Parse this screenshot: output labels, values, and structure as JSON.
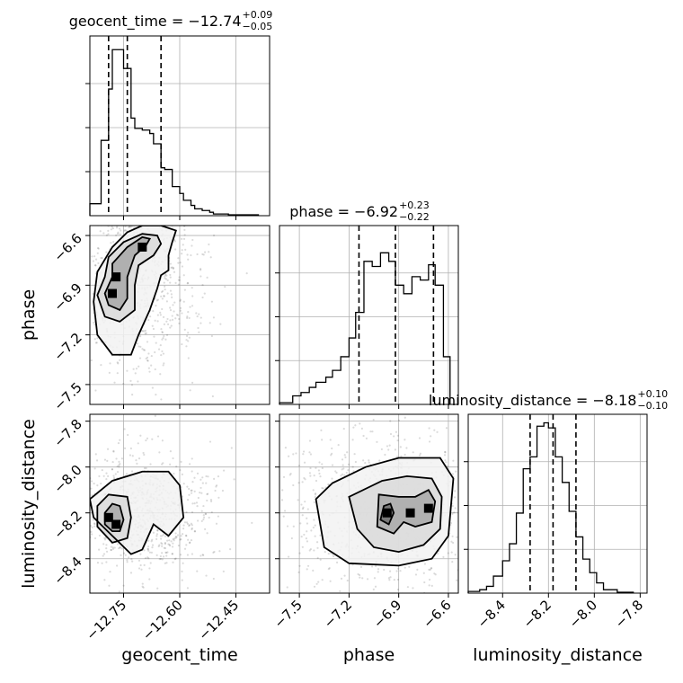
{
  "chart_data": {
    "type": "corner",
    "parameters": [
      "geocent_time",
      "phase",
      "luminosity_distance"
    ],
    "titles": [
      {
        "param": "geocent_time",
        "text": "geocent_time = −12.74",
        "plus": "+0.09",
        "minus": "−0.05"
      },
      {
        "param": "phase",
        "text": "phase = −6.92",
        "plus": "+0.23",
        "minus": "−0.22"
      },
      {
        "param": "luminosity_distance",
        "text": "luminosity_distance = −8.18",
        "plus": "+0.10",
        "minus": "−0.10"
      }
    ],
    "axes": {
      "geocent_time": {
        "range": [
          -12.84,
          -12.36
        ],
        "ticks": [
          -12.75,
          -12.6,
          -12.45
        ],
        "tick_labels": [
          "−12.75",
          "−12.60",
          "−12.45"
        ]
      },
      "phase": {
        "range": [
          -7.62,
          -6.54
        ],
        "ticks": [
          -7.5,
          -7.2,
          -6.9,
          -6.6
        ],
        "tick_labels": [
          "−7.5",
          "−7.2",
          "−6.9",
          "−6.6"
        ]
      },
      "luminosity_distance": {
        "range": [
          -8.55,
          -7.77
        ],
        "ticks": [
          -8.4,
          -8.2,
          -8.0,
          -7.8
        ],
        "tick_labels": [
          "−8.4",
          "−8.2",
          "−8.0",
          "−7.8"
        ]
      }
    },
    "histograms": {
      "geocent_time": {
        "bin_edges": [
          -12.84,
          -12.81,
          -12.79,
          -12.78,
          -12.76,
          -12.75,
          -12.73,
          -12.72,
          -12.7,
          -12.68,
          -12.67,
          -12.65,
          -12.64,
          -12.62,
          -12.6,
          -12.59,
          -12.57,
          -12.56,
          -12.54,
          -12.52,
          -12.51,
          -12.49,
          -12.47,
          -12.39
        ],
        "counts": [
          0.07,
          0.44,
          0.74,
          0.97,
          0.97,
          0.86,
          0.57,
          0.51,
          0.5,
          0.48,
          0.42,
          0.28,
          0.27,
          0.17,
          0.13,
          0.09,
          0.06,
          0.04,
          0.03,
          0.02,
          0.01,
          0.01,
          0.005
        ],
        "quantiles": [
          -12.79,
          -12.74,
          -12.65
        ]
      },
      "phase": {
        "bin_edges": [
          -7.62,
          -7.54,
          -7.49,
          -7.44,
          -7.4,
          -7.34,
          -7.3,
          -7.25,
          -7.2,
          -7.16,
          -7.11,
          -7.06,
          -7.01,
          -6.96,
          -6.92,
          -6.87,
          -6.82,
          -6.77,
          -6.72,
          -6.68,
          -6.63,
          -6.59
        ],
        "counts": [
          0.01,
          0.05,
          0.07,
          0.1,
          0.13,
          0.16,
          0.2,
          0.28,
          0.39,
          0.54,
          0.84,
          0.81,
          0.89,
          0.84,
          0.7,
          0.65,
          0.75,
          0.73,
          0.82,
          0.7,
          0.28
        ],
        "quantiles": [
          -7.14,
          -6.92,
          -6.69
        ]
      },
      "luminosity_distance": {
        "bin_edges": [
          -8.55,
          -8.5,
          -8.47,
          -8.44,
          -8.4,
          -8.37,
          -8.34,
          -8.31,
          -8.28,
          -8.25,
          -8.22,
          -8.2,
          -8.17,
          -8.14,
          -8.11,
          -8.08,
          -8.05,
          -8.02,
          -7.99,
          -7.96,
          -7.9,
          -7.83
        ],
        "counts": [
          0.01,
          0.02,
          0.04,
          0.1,
          0.19,
          0.29,
          0.47,
          0.73,
          0.8,
          0.98,
          1.0,
          0.97,
          0.8,
          0.65,
          0.48,
          0.33,
          0.2,
          0.12,
          0.06,
          0.02,
          0.005
        ],
        "quantiles": [
          -8.28,
          -8.18,
          -8.08
        ]
      }
    },
    "pairs": [
      {
        "x": "geocent_time",
        "y": "phase",
        "contours": [
          [
            [
              -12.78,
              -6.85
            ],
            [
              -12.8,
              -6.95
            ],
            [
              -12.79,
              -7.02
            ],
            [
              -12.76,
              -7.05
            ],
            [
              -12.74,
              -6.98
            ],
            [
              -12.74,
              -6.85
            ],
            [
              -12.72,
              -6.72
            ],
            [
              -12.69,
              -6.66
            ],
            [
              -12.68,
              -6.62
            ],
            [
              -12.7,
              -6.61
            ],
            [
              -12.74,
              -6.67
            ],
            [
              -12.78,
              -6.77
            ]
          ],
          [
            [
              -12.8,
              -6.85
            ],
            [
              -12.82,
              -6.96
            ],
            [
              -12.8,
              -7.09
            ],
            [
              -12.76,
              -7.12
            ],
            [
              -12.72,
              -7.05
            ],
            [
              -12.72,
              -6.9
            ],
            [
              -12.71,
              -6.78
            ],
            [
              -12.67,
              -6.72
            ],
            [
              -12.65,
              -6.65
            ],
            [
              -12.66,
              -6.6
            ],
            [
              -12.7,
              -6.59
            ],
            [
              -12.75,
              -6.64
            ],
            [
              -12.79,
              -6.73
            ]
          ],
          [
            [
              -12.82,
              -6.82
            ],
            [
              -12.83,
              -7.0
            ],
            [
              -12.82,
              -7.2
            ],
            [
              -12.78,
              -7.32
            ],
            [
              -12.73,
              -7.32
            ],
            [
              -12.71,
              -7.2
            ],
            [
              -12.68,
              -7.05
            ],
            [
              -12.66,
              -6.92
            ],
            [
              -12.65,
              -6.84
            ],
            [
              -12.63,
              -6.81
            ],
            [
              -12.63,
              -6.72
            ],
            [
              -12.62,
              -6.64
            ],
            [
              -12.61,
              -6.57
            ],
            [
              -12.65,
              -6.54
            ],
            [
              -12.7,
              -6.54
            ],
            [
              -12.74,
              -6.58
            ],
            [
              -12.78,
              -6.67
            ]
          ]
        ],
        "density_peaks": [
          [
            -12.7,
            -6.67
          ],
          [
            -12.77,
            -6.85
          ],
          [
            -12.78,
            -6.95
          ]
        ]
      },
      {
        "x": "geocent_time",
        "y": "luminosity_distance",
        "contours": [
          [
            [
              -12.8,
              -8.2
            ],
            [
              -12.8,
              -8.25
            ],
            [
              -12.78,
              -8.28
            ],
            [
              -12.76,
              -8.28
            ],
            [
              -12.75,
              -8.23
            ],
            [
              -12.76,
              -8.17
            ],
            [
              -12.78,
              -8.16
            ]
          ],
          [
            [
              -12.82,
              -8.17
            ],
            [
              -12.82,
              -8.26
            ],
            [
              -12.78,
              -8.33
            ],
            [
              -12.74,
              -8.31
            ],
            [
              -12.73,
              -8.22
            ],
            [
              -12.74,
              -8.13
            ],
            [
              -12.79,
              -8.12
            ]
          ],
          [
            [
              -12.84,
              -8.14
            ],
            [
              -12.83,
              -8.22
            ],
            [
              -12.78,
              -8.3
            ],
            [
              -12.73,
              -8.38
            ],
            [
              -12.7,
              -8.36
            ],
            [
              -12.67,
              -8.25
            ],
            [
              -12.63,
              -8.3
            ],
            [
              -12.59,
              -8.22
            ],
            [
              -12.6,
              -8.08
            ],
            [
              -12.63,
              -8.02
            ],
            [
              -12.7,
              -8.02
            ],
            [
              -12.78,
              -8.06
            ]
          ]
        ],
        "density_peaks": [
          [
            -12.79,
            -8.22
          ],
          [
            -12.77,
            -8.25
          ]
        ]
      },
      {
        "x": "phase",
        "y": "luminosity_distance",
        "contours": [
          [
            [
              -6.99,
              -8.17
            ],
            [
              -7.01,
              -8.23
            ],
            [
              -6.96,
              -8.25
            ],
            [
              -6.93,
              -8.2
            ],
            [
              -6.95,
              -8.16
            ]
          ],
          [
            [
              -7.02,
              -8.12
            ],
            [
              -7.03,
              -8.26
            ],
            [
              -6.93,
              -8.29
            ],
            [
              -6.87,
              -8.24
            ],
            [
              -6.8,
              -8.26
            ],
            [
              -6.7,
              -8.24
            ],
            [
              -6.68,
              -8.15
            ],
            [
              -6.72,
              -8.1
            ],
            [
              -6.8,
              -8.13
            ],
            [
              -6.9,
              -8.13
            ]
          ],
          [
            [
              -7.2,
              -8.13
            ],
            [
              -7.15,
              -8.27
            ],
            [
              -7.05,
              -8.35
            ],
            [
              -6.9,
              -8.37
            ],
            [
              -6.75,
              -8.34
            ],
            [
              -6.65,
              -8.27
            ],
            [
              -6.64,
              -8.13
            ],
            [
              -6.7,
              -8.05
            ],
            [
              -6.85,
              -8.04
            ],
            [
              -7.0,
              -8.06
            ]
          ],
          [
            [
              -7.4,
              -8.14
            ],
            [
              -7.35,
              -8.35
            ],
            [
              -7.2,
              -8.42
            ],
            [
              -6.9,
              -8.43
            ],
            [
              -6.7,
              -8.4
            ],
            [
              -6.6,
              -8.3
            ],
            [
              -6.57,
              -8.05
            ],
            [
              -6.65,
              -7.96
            ],
            [
              -6.9,
              -7.96
            ],
            [
              -7.1,
              -8.0
            ],
            [
              -7.3,
              -8.07
            ]
          ]
        ],
        "density_peaks": [
          [
            -6.97,
            -8.2
          ],
          [
            -6.83,
            -8.2
          ],
          [
            -6.72,
            -8.18
          ]
        ]
      }
    ]
  }
}
